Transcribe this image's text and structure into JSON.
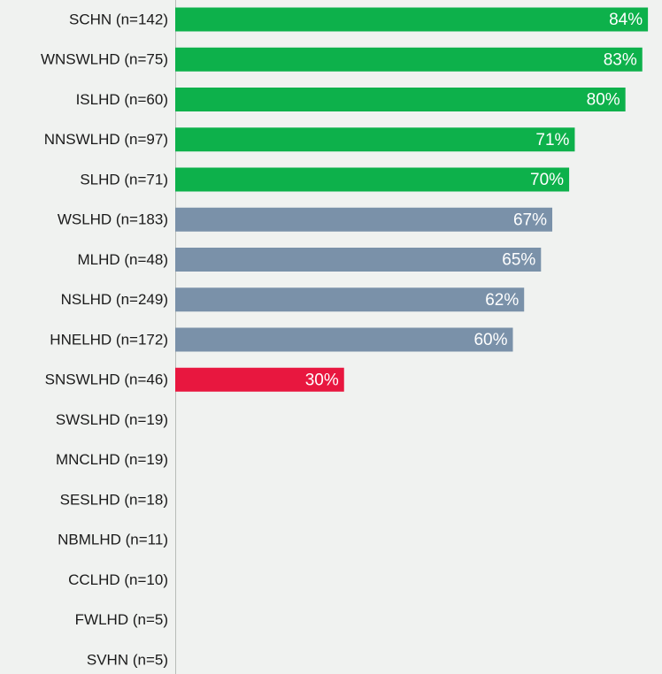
{
  "chart_data": {
    "type": "hbar",
    "categories": [
      "SCHN (n=142)",
      "WNSWLHD (n=75)",
      "ISLHD (n=60)",
      "NNSWLHD (n=97)",
      "SLHD (n=71)",
      "WSLHD (n=183)",
      "MLHD (n=48)",
      "NSLHD (n=249)",
      "HNELHD (n=172)",
      "SNSWLHD (n=46)",
      "SWSLHD (n=19)",
      "MNCLHD (n=19)",
      "SESLHD (n=18)",
      "NBMLHD (n=11)",
      "CCLHD (n=10)",
      "FWLHD (n=5)",
      "SVHN (n=5)"
    ],
    "values": [
      84,
      83,
      80,
      71,
      70,
      67,
      65,
      62,
      60,
      30,
      null,
      null,
      null,
      null,
      null,
      null,
      null
    ],
    "value_labels": [
      "84%",
      "83%",
      "80%",
      "71%",
      "70%",
      "67%",
      "65%",
      "62%",
      "60%",
      "30%",
      null,
      null,
      null,
      null,
      null,
      null,
      null
    ],
    "colors": [
      "#0db14b",
      "#0db14b",
      "#0db14b",
      "#0db14b",
      "#0db14b",
      "#7a91a9",
      "#7a91a9",
      "#7a91a9",
      "#7a91a9",
      "#e8173f",
      null,
      null,
      null,
      null,
      null,
      null,
      null
    ],
    "xlim": [
      0,
      86.5
    ]
  }
}
